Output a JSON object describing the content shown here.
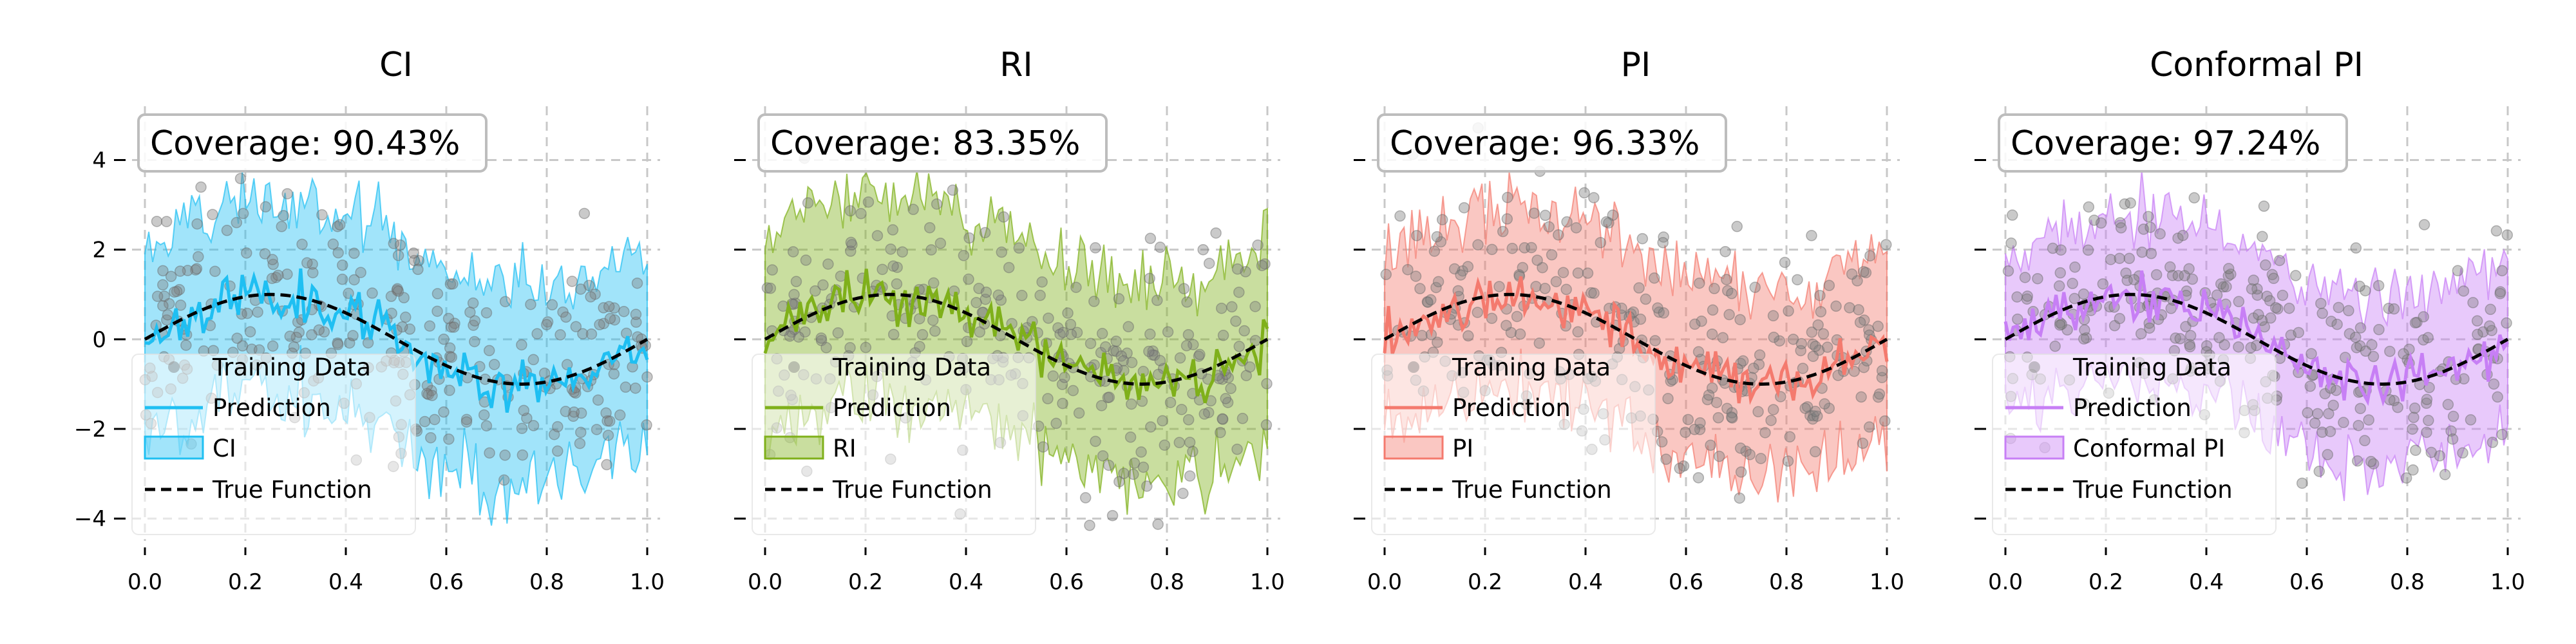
{
  "chart_data": [
    {
      "type": "line",
      "title": "CI",
      "interval_label": "CI",
      "coverage_label": "Coverage: 90.43%",
      "color": "#1fbff2",
      "seed": 11,
      "band_half_width": 2.2,
      "xlim": [
        0.0,
        1.0
      ],
      "ylim": [
        -4.5,
        5.2
      ],
      "xticks": [
        "0.0",
        "0.2",
        "0.4",
        "0.6",
        "0.8",
        "1.0"
      ],
      "yticks": [
        "−4",
        "−2",
        "0",
        "2",
        "4"
      ],
      "legend": [
        "Training Data",
        "Prediction",
        "CI",
        "True Function"
      ],
      "true_function": "sin(2πx)",
      "grid": true,
      "legend_position": "lower-left"
    },
    {
      "type": "line",
      "title": "RI",
      "interval_label": "RI",
      "coverage_label": "Coverage: 83.35%",
      "color": "#7fb01a",
      "seed": 23,
      "band_half_width": 2.3,
      "xlim": [
        0.0,
        1.0
      ],
      "ylim": [
        -4.5,
        5.2
      ],
      "xticks": [
        "0.0",
        "0.2",
        "0.4",
        "0.6",
        "0.8",
        "1.0"
      ],
      "yticks": [
        "−4",
        "−2",
        "0",
        "2",
        "4"
      ],
      "legend": [
        "Training Data",
        "Prediction",
        "RI",
        "True Function"
      ],
      "true_function": "sin(2πx)",
      "grid": true,
      "legend_position": "lower-left"
    },
    {
      "type": "line",
      "title": "PI",
      "interval_label": "PI",
      "coverage_label": "Coverage: 96.33%",
      "color": "#f47a6e",
      "seed": 37,
      "band_half_width": 2.1,
      "xlim": [
        0.0,
        1.0
      ],
      "ylim": [
        -4.5,
        5.2
      ],
      "xticks": [
        "0.0",
        "0.2",
        "0.4",
        "0.6",
        "0.8",
        "1.0"
      ],
      "yticks": [
        "−4",
        "−2",
        "0",
        "2",
        "4"
      ],
      "legend": [
        "Training Data",
        "Prediction",
        "PI",
        "True Function"
      ],
      "true_function": "sin(2πx)",
      "grid": true,
      "legend_position": "lower-left"
    },
    {
      "type": "line",
      "title": "Conformal PI",
      "interval_label": "Conformal PI",
      "coverage_label": "Coverage: 97.24%",
      "color": "#c77ff5",
      "seed": 53,
      "band_half_width": 1.9,
      "xlim": [
        0.0,
        1.0
      ],
      "ylim": [
        -4.5,
        5.2
      ],
      "xticks": [
        "0.0",
        "0.2",
        "0.4",
        "0.6",
        "0.8",
        "1.0"
      ],
      "yticks": [
        "−4",
        "−2",
        "0",
        "2",
        "4"
      ],
      "legend": [
        "Training Data",
        "Prediction",
        "Conformal PI",
        "True Function"
      ],
      "true_function": "sin(2πx)",
      "grid": true,
      "legend_position": "lower-left"
    }
  ]
}
